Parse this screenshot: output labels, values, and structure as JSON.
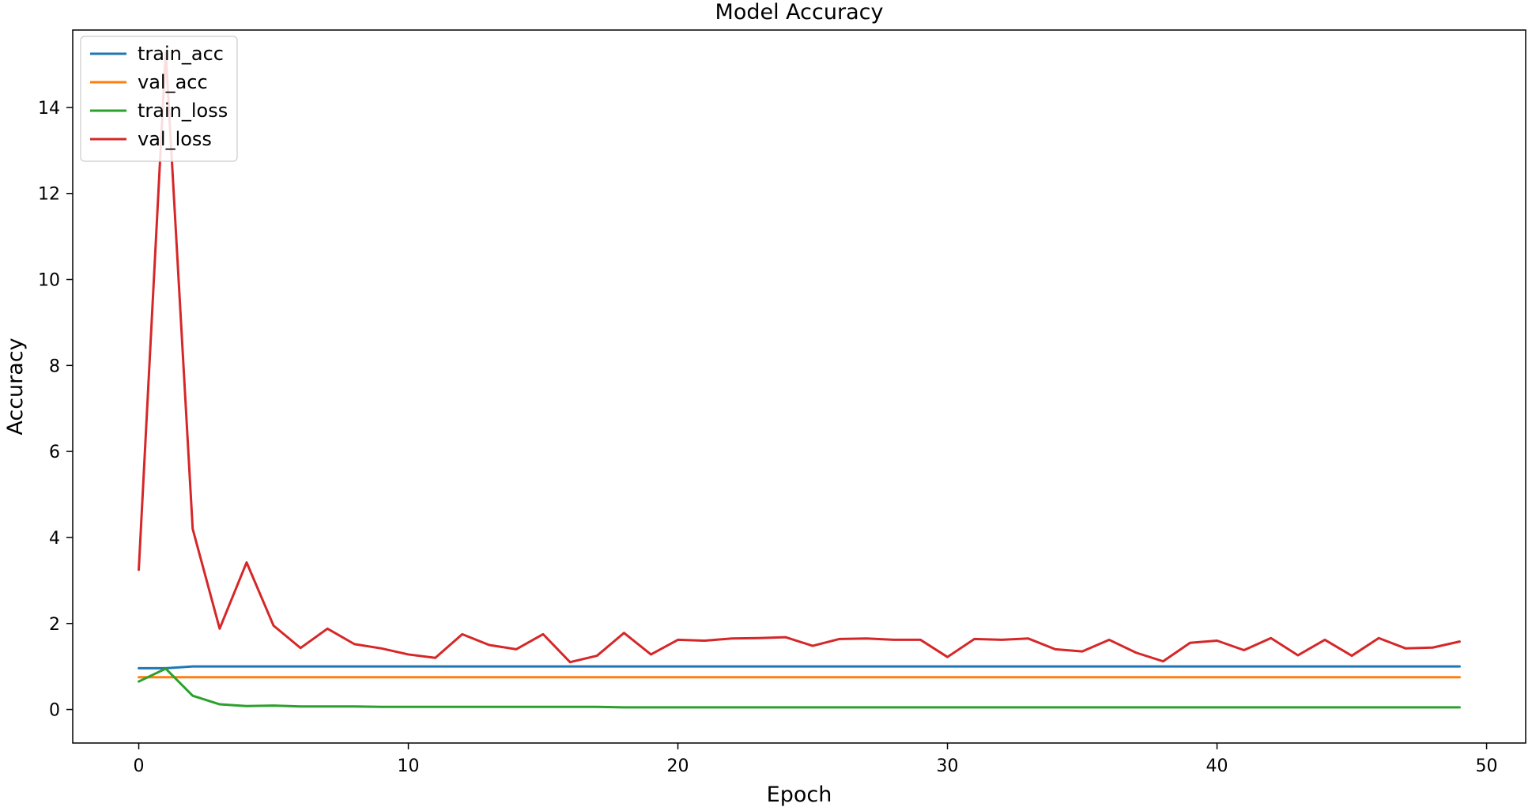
{
  "chart_data": {
    "type": "line",
    "title": "Model Accuracy",
    "xlabel": "Epoch",
    "ylabel": "Accuracy",
    "xlim": [
      -2.45,
      51.45
    ],
    "ylim": [
      -0.78,
      15.8
    ],
    "xticks": [
      0,
      10,
      20,
      30,
      40,
      50
    ],
    "yticks": [
      0,
      2,
      4,
      6,
      8,
      10,
      12,
      14
    ],
    "grid": false,
    "legend_position": "top-left",
    "x": [
      0,
      1,
      2,
      3,
      4,
      5,
      6,
      7,
      8,
      9,
      10,
      11,
      12,
      13,
      14,
      15,
      16,
      17,
      18,
      19,
      20,
      21,
      22,
      23,
      24,
      25,
      26,
      27,
      28,
      29,
      30,
      31,
      32,
      33,
      34,
      35,
      36,
      37,
      38,
      39,
      40,
      41,
      42,
      43,
      44,
      45,
      46,
      47,
      48,
      49
    ],
    "series": [
      {
        "name": "train_acc",
        "color": "#1f77b4",
        "values": [
          0.96,
          0.96,
          1.0,
          1.0,
          1.0,
          1.0,
          1.0,
          1.0,
          1.0,
          1.0,
          1.0,
          1.0,
          1.0,
          1.0,
          1.0,
          1.0,
          1.0,
          1.0,
          1.0,
          1.0,
          1.0,
          1.0,
          1.0,
          1.0,
          1.0,
          1.0,
          1.0,
          1.0,
          1.0,
          1.0,
          1.0,
          1.0,
          1.0,
          1.0,
          1.0,
          1.0,
          1.0,
          1.0,
          1.0,
          1.0,
          1.0,
          1.0,
          1.0,
          1.0,
          1.0,
          1.0,
          1.0,
          1.0,
          1.0,
          1.0
        ]
      },
      {
        "name": "val_acc",
        "color": "#ff7f0e",
        "values": [
          0.75,
          0.75,
          0.75,
          0.75,
          0.75,
          0.75,
          0.75,
          0.75,
          0.75,
          0.75,
          0.75,
          0.75,
          0.75,
          0.75,
          0.75,
          0.75,
          0.75,
          0.75,
          0.75,
          0.75,
          0.75,
          0.75,
          0.75,
          0.75,
          0.75,
          0.75,
          0.75,
          0.75,
          0.75,
          0.75,
          0.75,
          0.75,
          0.75,
          0.75,
          0.75,
          0.75,
          0.75,
          0.75,
          0.75,
          0.75,
          0.75,
          0.75,
          0.75,
          0.75,
          0.75,
          0.75,
          0.75,
          0.75,
          0.75,
          0.75
        ]
      },
      {
        "name": "train_loss",
        "color": "#2ca02c",
        "values": [
          0.65,
          0.95,
          0.32,
          0.12,
          0.08,
          0.09,
          0.07,
          0.07,
          0.07,
          0.06,
          0.06,
          0.06,
          0.06,
          0.06,
          0.06,
          0.06,
          0.06,
          0.06,
          0.05,
          0.05,
          0.05,
          0.05,
          0.05,
          0.05,
          0.05,
          0.05,
          0.05,
          0.05,
          0.05,
          0.05,
          0.05,
          0.05,
          0.05,
          0.05,
          0.05,
          0.05,
          0.05,
          0.05,
          0.05,
          0.05,
          0.05,
          0.05,
          0.05,
          0.05,
          0.05,
          0.05,
          0.05,
          0.05,
          0.05,
          0.05
        ]
      },
      {
        "name": "val_loss",
        "color": "#d62728",
        "values": [
          3.25,
          15.3,
          4.2,
          1.88,
          3.42,
          1.95,
          1.43,
          1.88,
          1.52,
          1.42,
          1.28,
          1.2,
          1.75,
          1.5,
          1.4,
          1.75,
          1.1,
          1.25,
          1.78,
          1.28,
          1.62,
          1.6,
          1.65,
          1.66,
          1.68,
          1.48,
          1.64,
          1.65,
          1.62,
          1.62,
          1.22,
          1.64,
          1.62,
          1.65,
          1.4,
          1.35,
          1.62,
          1.32,
          1.12,
          1.55,
          1.6,
          1.38,
          1.66,
          1.26,
          1.62,
          1.25,
          1.66,
          1.42,
          1.44,
          1.58
        ]
      }
    ]
  }
}
